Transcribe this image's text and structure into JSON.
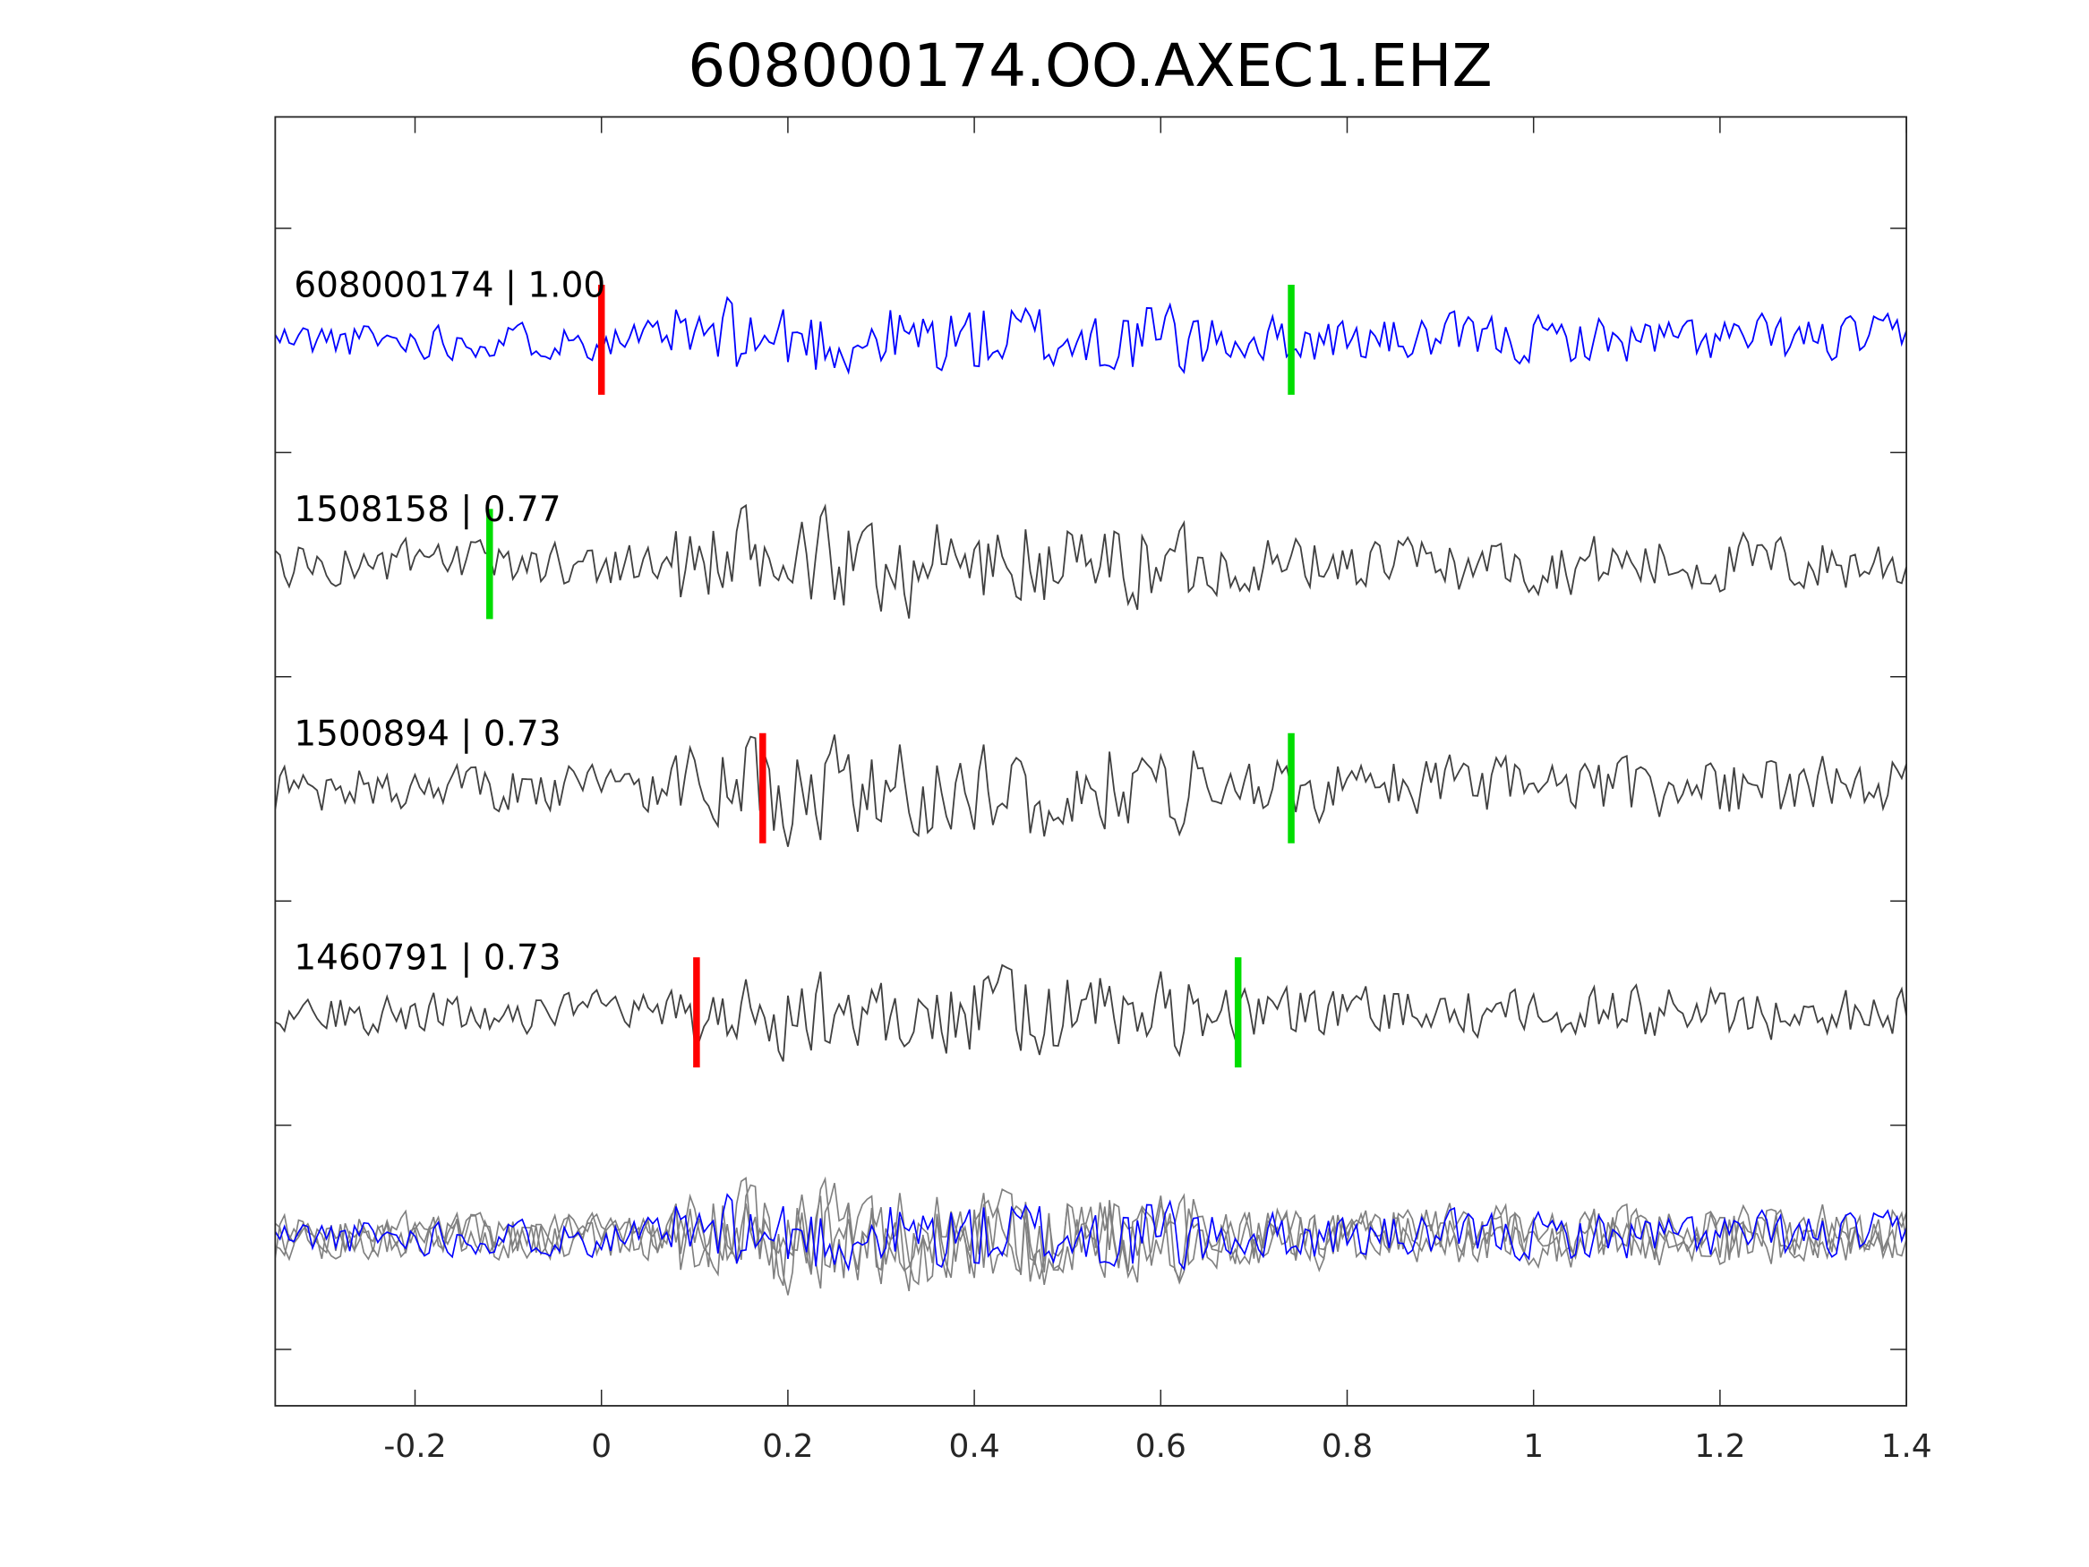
{
  "chart_data": {
    "type": "line",
    "title": "608000174.OO.AXEC1.EHZ",
    "xlabel": "",
    "ylabel": "",
    "xlim": [
      -0.35,
      1.4
    ],
    "xticks": [
      -0.2,
      0,
      0.2,
      0.4,
      0.6,
      0.8,
      1,
      1.2,
      1.4
    ],
    "xtick_labels": [
      "-0.2",
      "0",
      "0.2",
      "0.4",
      "0.6",
      "0.8",
      "1",
      "1.2",
      "1.4"
    ],
    "sample_interval": 0.005,
    "colors": {
      "reference": "#0000ff",
      "other": "#404040",
      "stack_other": "#808080",
      "p_pick": "#ff0000",
      "s_pick": "#00dd00",
      "axis": "#262626"
    },
    "traces": [
      {
        "label": "608000174 | 1.00",
        "id": "608000174",
        "cc": 1.0,
        "color": "#0000ff",
        "p_pick": 0,
        "s_pick": 0.74,
        "seed": 11,
        "amp": 1.0
      },
      {
        "label": "1508158 | 0.77",
        "id": "1508158",
        "cc": 0.77,
        "color": "#404040",
        "p_pick": null,
        "s_pick": -0.12,
        "seed": 23,
        "amp": 1.25
      },
      {
        "label": "1500894 | 0.73",
        "id": "1500894",
        "cc": 0.73,
        "color": "#404040",
        "p_pick": 0.173,
        "s_pick": 0.74,
        "seed": 37,
        "amp": 1.3
      },
      {
        "label": "1460791 | 0.73",
        "id": "1460791",
        "cc": 0.73,
        "color": "#404040",
        "p_pick": 0.102,
        "s_pick": 0.683,
        "seed": 53,
        "amp": 1.1
      }
    ],
    "stack": {
      "label": "overlay of all traces"
    }
  }
}
